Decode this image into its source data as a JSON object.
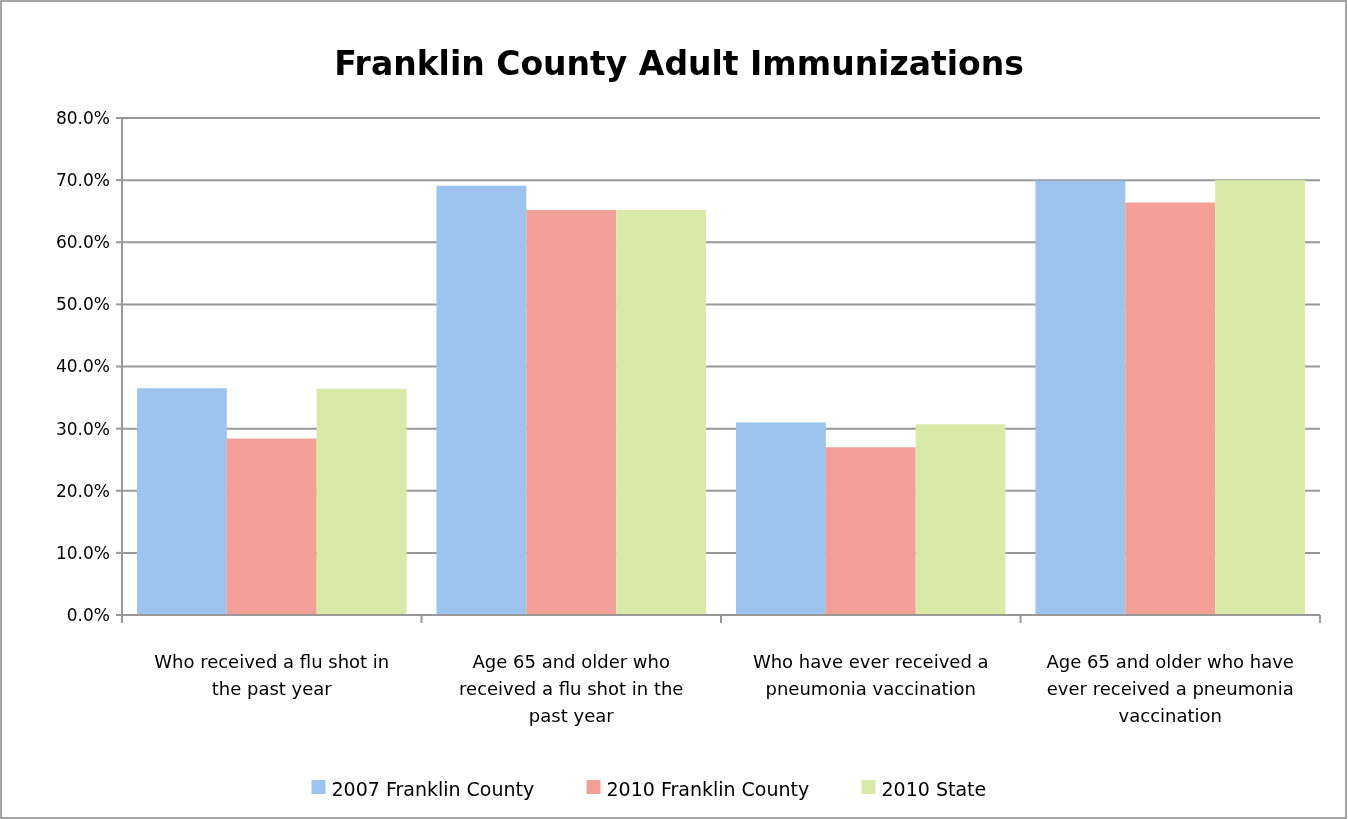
{
  "chart_data": {
    "type": "bar",
    "title": "Franklin County Adult Immunizations",
    "categories": [
      "Who received a flu shot in the past year",
      "Age 65 and older who received a flu shot in the past year",
      "Who have ever received a pneumonia vaccination",
      "Age 65 and older who have ever received a pneumonia vaccination"
    ],
    "series": [
      {
        "name": "2007 Franklin County",
        "color": "#9cc4ee",
        "values": [
          36.5,
          69.1,
          31.0,
          69.9
        ]
      },
      {
        "name": "2010 Franklin County",
        "color": "#f29f97",
        "values": [
          28.4,
          65.2,
          27.0,
          66.4
        ]
      },
      {
        "name": "2010 State",
        "color": "#d9eaa8",
        "values": [
          36.4,
          65.2,
          30.7,
          70.0
        ]
      }
    ],
    "ylim": [
      0,
      80
    ],
    "yticks": [
      {
        "value": 0,
        "label": "0.0%"
      },
      {
        "value": 10,
        "label": "10.0%"
      },
      {
        "value": 20,
        "label": "20.0%"
      },
      {
        "value": 30,
        "label": "30.0%"
      },
      {
        "value": 40,
        "label": "40.0%"
      },
      {
        "value": 50,
        "label": "50.0%"
      },
      {
        "value": 60,
        "label": "60.0%"
      },
      {
        "value": 70,
        "label": "70.0%"
      },
      {
        "value": 80,
        "label": "80.0%"
      }
    ],
    "grid": "y",
    "legend": "bottom"
  }
}
